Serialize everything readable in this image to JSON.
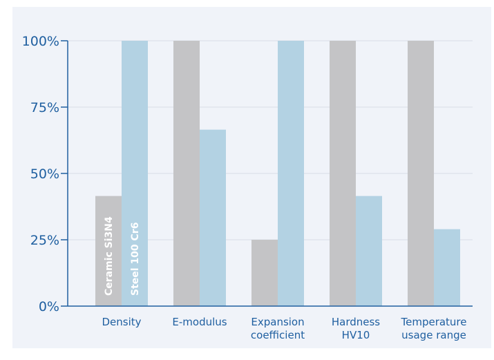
{
  "chart_data": {
    "type": "bar",
    "categories": [
      [
        "Density"
      ],
      [
        "E-modulus"
      ],
      [
        "Expansion",
        "coefficient"
      ],
      [
        "Hardness",
        "HV10"
      ],
      [
        "Temperature",
        "usage range"
      ]
    ],
    "series": [
      {
        "name": "Ceramic Si3N4",
        "color": "#c4c4c6",
        "values": [
          41.5,
          100,
          25,
          100,
          100
        ]
      },
      {
        "name": "Steel 100 Cr6",
        "color": "#b3d2e3",
        "values": [
          100,
          66.5,
          100,
          41.5,
          29
        ]
      }
    ],
    "yticks": [
      "100%",
      "75%",
      "50%",
      "25%",
      "0%"
    ],
    "ytick_values": [
      100,
      75,
      50,
      25,
      0
    ],
    "ylim": [
      0,
      100
    ],
    "grid": true,
    "legend": "labels drawn vertically inside first category bars",
    "colors": {
      "background": "#f0f3f9",
      "text": "#1f5fa0",
      "axis": "#1f5fa0",
      "grid": "#d8dde6",
      "series_label": "#ffffff"
    }
  }
}
